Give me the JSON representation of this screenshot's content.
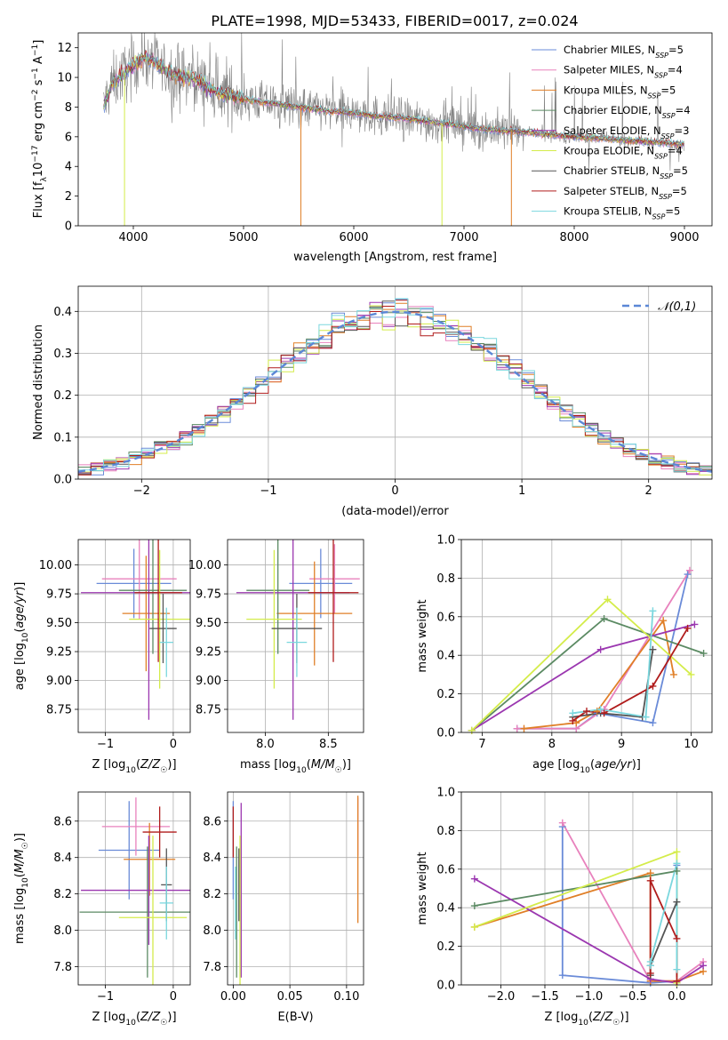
{
  "figure_title": "PLATE=1998, MJD=53433, FIBERID=0017, z=0.024",
  "colors": {
    "Chabrier MILES": "#6a8bd8",
    "Salpeter MILES": "#e882bd",
    "Kroupa MILES": "#e07f27",
    "Chabrier ELODIE": "#5b8a63",
    "Salpeter ELODIE": "#9b37b0",
    "Kroupa ELODIE": "#d4ec4a",
    "Chabrier STELIB": "#555555",
    "Salpeter STELIB": "#b01c1c",
    "Kroupa STELIB": "#7ad7de"
  },
  "chart_data": [
    {
      "id": "spectrum",
      "type": "line",
      "title": "PLATE=1998, MJD=53433, FIBERID=0017, z=0.024",
      "xlabel": "wavelength [Angstrom, rest frame]",
      "ylabel": "Flux [f_λ 10^-17 erg cm^-2 s^-1 A^-1]",
      "xlim": [
        3500,
        9250
      ],
      "ylim": [
        0,
        13
      ],
      "xticks": [
        4000,
        5000,
        6000,
        7000,
        8000,
        9000
      ],
      "yticks": [
        0,
        2,
        4,
        6,
        8,
        10,
        12
      ],
      "grid": false,
      "legend_position": "top-right",
      "data_color": "#808080",
      "model_continuum": {
        "x": [
          3720,
          3800,
          3900,
          4000,
          4100,
          4200,
          4300,
          4400,
          4500,
          4600,
          4700,
          4800,
          4900,
          5000,
          5200,
          5400,
          5600,
          5800,
          6000,
          6200,
          6400,
          6600,
          6800,
          7000,
          7200,
          7400,
          7600,
          7800,
          8000,
          8200,
          8400,
          8600,
          8800,
          9000
        ],
        "y": [
          7.8,
          9.5,
          10.2,
          10.8,
          11.4,
          11.0,
          10.4,
          10.1,
          10.0,
          9.8,
          9.2,
          8.9,
          8.8,
          8.5,
          8.3,
          8.1,
          7.9,
          7.7,
          7.6,
          7.4,
          7.3,
          7.1,
          6.9,
          6.7,
          6.5,
          6.4,
          6.3,
          6.1,
          6.0,
          5.9,
          5.8,
          5.7,
          5.6,
          5.5
        ]
      },
      "series": [
        {
          "name": "Chabrier MILES, N_SSP=5"
        },
        {
          "name": "Salpeter MILES, N_SSP=4"
        },
        {
          "name": "Kroupa MILES, N_SSP=5"
        },
        {
          "name": "Chabrier ELODIE, N_SSP=4"
        },
        {
          "name": "Salpeter ELODIE, N_SSP=3"
        },
        {
          "name": "Kroupa ELODIE, N_SSP=4"
        },
        {
          "name": "Chabrier STELIB, N_SSP=5"
        },
        {
          "name": "Salpeter STELIB, N_SSP=5"
        },
        {
          "name": "Kroupa STELIB, N_SSP=5"
        }
      ]
    },
    {
      "id": "residuals",
      "type": "line",
      "xlabel": "(data-model)/error",
      "ylabel": "Normed distribution",
      "xlim": [
        -2.5,
        2.5
      ],
      "ylim": [
        0,
        0.46
      ],
      "xticks": [
        -2,
        -1,
        0,
        1,
        2
      ],
      "yticks": [
        0.0,
        0.1,
        0.2,
        0.3,
        0.4
      ],
      "grid": true,
      "legend_position": "top-right",
      "legend": "𝒩(0,1)",
      "bin_width": 0.1
    },
    {
      "id": "age_vs_Z",
      "type": "scatter",
      "xlabel": "Z [log10(Z/Z☉)]",
      "ylabel": "age [log10(age/yr)]",
      "xlim": [
        -1.4,
        0.25
      ],
      "ylim": [
        8.55,
        10.22
      ],
      "xticks": [
        -1,
        0
      ],
      "yticks": [
        8.75,
        9.0,
        9.25,
        9.5,
        9.75,
        10.0
      ],
      "grid": true,
      "points": [
        {
          "s": "Chabrier MILES",
          "x": -0.58,
          "xerr": 0.55,
          "y": 9.84,
          "yerr": 0.3
        },
        {
          "s": "Salpeter MILES",
          "x": -0.5,
          "xerr": 0.55,
          "y": 9.88,
          "yerr": 0.35
        },
        {
          "s": "Kroupa MILES",
          "x": -0.4,
          "xerr": 0.35,
          "y": 9.58,
          "yerr": 0.5
        },
        {
          "s": "Chabrier ELODIE",
          "x": -0.3,
          "xerr": 0.5,
          "y": 9.78,
          "yerr": 0.55
        },
        {
          "s": "Salpeter ELODIE",
          "x": -0.36,
          "xerr": 1.0,
          "y": 9.76,
          "yerr": 1.1
        },
        {
          "s": "Kroupa ELODIE",
          "x": -0.2,
          "xerr": 0.45,
          "y": 9.53,
          "yerr": 0.6
        },
        {
          "s": "Chabrier STELIB",
          "x": -0.15,
          "xerr": 0.2,
          "y": 9.45,
          "yerr": 0.3
        },
        {
          "s": "Salpeter STELIB",
          "x": -0.22,
          "xerr": 0.35,
          "y": 9.76,
          "yerr": 0.6
        },
        {
          "s": "Kroupa STELIB",
          "x": -0.1,
          "xerr": 0.1,
          "y": 9.33,
          "yerr": 0.3
        }
      ]
    },
    {
      "id": "age_vs_mass",
      "type": "scatter",
      "xlabel": "mass [log10(M/M☉)]",
      "ylabel": "",
      "xlim": [
        7.7,
        8.78
      ],
      "ylim": [
        8.55,
        10.22
      ],
      "xticks": [
        8.0,
        8.5
      ],
      "yticks": [
        8.75,
        9.0,
        9.25,
        9.5,
        9.75,
        10.0
      ],
      "grid": true,
      "points": [
        {
          "s": "Chabrier MILES",
          "x": 8.44,
          "xerr": 0.25,
          "y": 9.84,
          "yerr": 0.3
        },
        {
          "s": "Salpeter MILES",
          "x": 8.55,
          "xerr": 0.2,
          "y": 9.88,
          "yerr": 0.3
        },
        {
          "s": "Kroupa MILES",
          "x": 8.39,
          "xerr": 0.3,
          "y": 9.58,
          "yerr": 0.45
        },
        {
          "s": "Chabrier ELODIE",
          "x": 8.1,
          "xerr": 0.25,
          "y": 9.78,
          "yerr": 0.55
        },
        {
          "s": "Salpeter ELODIE",
          "x": 8.22,
          "xerr": 0.45,
          "y": 9.76,
          "yerr": 1.1
        },
        {
          "s": "Kroupa ELODIE",
          "x": 8.07,
          "xerr": 0.22,
          "y": 9.53,
          "yerr": 0.6
        },
        {
          "s": "Chabrier STELIB",
          "x": 8.25,
          "xerr": 0.2,
          "y": 9.45,
          "yerr": 0.3
        },
        {
          "s": "Salpeter STELIB",
          "x": 8.54,
          "xerr": 0.2,
          "y": 9.76,
          "yerr": 0.6
        },
        {
          "s": "Kroupa STELIB",
          "x": 8.25,
          "xerr": 0.08,
          "y": 9.33,
          "yerr": 0.3
        }
      ]
    },
    {
      "id": "weight_vs_age",
      "type": "line",
      "xlabel": "age [log10(age/yr)]",
      "ylabel": "mass weight",
      "xlim": [
        6.7,
        10.3
      ],
      "ylim": [
        0,
        1.0
      ],
      "xticks": [
        7,
        8,
        9,
        10
      ],
      "yticks": [
        0.0,
        0.2,
        0.4,
        0.6,
        0.8,
        1.0
      ],
      "grid": true,
      "series": [
        {
          "s": "Chabrier MILES",
          "x": [
            7.5,
            8.35,
            8.65,
            9.45,
            9.95
          ],
          "y": [
            0.02,
            0.02,
            0.1,
            0.05,
            0.82
          ]
        },
        {
          "s": "Salpeter MILES",
          "x": [
            7.5,
            8.35,
            8.75,
            9.98
          ],
          "y": [
            0.02,
            0.02,
            0.12,
            0.84
          ]
        },
        {
          "s": "Kroupa MILES",
          "x": [
            7.6,
            8.35,
            8.65,
            9.6,
            9.75
          ],
          "y": [
            0.02,
            0.05,
            0.11,
            0.58,
            0.3
          ]
        },
        {
          "s": "Chabrier ELODIE",
          "x": [
            6.85,
            8.75,
            10.18
          ],
          "y": [
            0.01,
            0.59,
            0.41
          ]
        },
        {
          "s": "Salpeter ELODIE",
          "x": [
            6.85,
            8.7,
            10.05
          ],
          "y": [
            0.01,
            0.43,
            0.56
          ]
        },
        {
          "s": "Kroupa ELODIE",
          "x": [
            6.85,
            8.8,
            10.0
          ],
          "y": [
            0.01,
            0.69,
            0.3
          ]
        },
        {
          "s": "Chabrier STELIB",
          "x": [
            8.3,
            8.7,
            9.3,
            9.45
          ],
          "y": [
            0.08,
            0.1,
            0.08,
            0.43
          ]
        },
        {
          "s": "Salpeter STELIB",
          "x": [
            8.3,
            8.5,
            8.75,
            9.45,
            9.95
          ],
          "y": [
            0.06,
            0.11,
            0.1,
            0.24,
            0.54
          ]
        },
        {
          "s": "Kroupa STELIB",
          "x": [
            8.3,
            8.7,
            9.35,
            9.45
          ],
          "y": [
            0.1,
            0.12,
            0.08,
            0.63
          ]
        }
      ]
    },
    {
      "id": "mass_vs_Z",
      "type": "scatter",
      "xlabel": "Z [log10(Z/Z☉)]",
      "ylabel": "mass [log10(M/M☉)]",
      "xlim": [
        -1.4,
        0.25
      ],
      "ylim": [
        7.7,
        8.76
      ],
      "xticks": [
        -1,
        0
      ],
      "yticks": [
        7.8,
        8.0,
        8.2,
        8.4,
        8.6
      ],
      "grid": true,
      "points": [
        {
          "s": "Chabrier MILES",
          "x": -0.65,
          "xerr": 0.45,
          "y": 8.44,
          "yerr": 0.27
        },
        {
          "s": "Salpeter MILES",
          "x": -0.55,
          "xerr": 0.5,
          "y": 8.57,
          "yerr": 0.16
        },
        {
          "s": "Kroupa MILES",
          "x": -0.35,
          "xerr": 0.38,
          "y": 8.39,
          "yerr": 0.2
        },
        {
          "s": "Chabrier ELODIE",
          "x": -0.38,
          "xerr": 1.0,
          "y": 8.1,
          "yerr": 0.36
        },
        {
          "s": "Salpeter ELODIE",
          "x": -0.36,
          "xerr": 1.0,
          "y": 8.22,
          "yerr": 0.3
        },
        {
          "s": "Kroupa ELODIE",
          "x": -0.3,
          "xerr": 0.5,
          "y": 8.07,
          "yerr": 0.45
        },
        {
          "s": "Chabrier STELIB",
          "x": -0.1,
          "xerr": 0.08,
          "y": 8.25,
          "yerr": 0.2
        },
        {
          "s": "Salpeter STELIB",
          "x": -0.2,
          "xerr": 0.25,
          "y": 8.54,
          "yerr": 0.14
        },
        {
          "s": "Kroupa STELIB",
          "x": -0.1,
          "xerr": 0.1,
          "y": 8.15,
          "yerr": 0.2
        }
      ]
    },
    {
      "id": "mass_vs_ebv",
      "type": "scatter",
      "xlabel": "E(B-V)",
      "ylabel": "",
      "xlim": [
        -0.005,
        0.115
      ],
      "ylim": [
        7.7,
        8.76
      ],
      "xticks": [
        0.0,
        0.05,
        0.1
      ],
      "yticks": [
        7.8,
        8.0,
        8.2,
        8.4,
        8.6
      ],
      "grid": true,
      "points": [
        {
          "s": "Chabrier MILES",
          "x": 0.0,
          "y": 8.44,
          "yerr": 0.27
        },
        {
          "s": "Salpeter MILES",
          "x": 0.11,
          "y": 8.57,
          "yerr": 0.16
        },
        {
          "s": "Kroupa MILES",
          "x": 0.11,
          "y": 8.39,
          "yerr": 0.35
        },
        {
          "s": "Chabrier ELODIE",
          "x": 0.003,
          "y": 8.1,
          "yerr": 0.36
        },
        {
          "s": "Salpeter ELODIE",
          "x": 0.007,
          "y": 8.22,
          "yerr": 0.48
        },
        {
          "s": "Kroupa ELODIE",
          "x": 0.006,
          "y": 8.07,
          "yerr": 0.45
        },
        {
          "s": "Chabrier STELIB",
          "x": 0.005,
          "y": 8.25,
          "yerr": 0.2
        },
        {
          "s": "Salpeter STELIB",
          "x": 0.0,
          "y": 8.54,
          "yerr": 0.14
        },
        {
          "s": "Kroupa STELIB",
          "x": 0.002,
          "y": 8.15,
          "yerr": 0.2
        }
      ]
    },
    {
      "id": "weight_vs_Z",
      "type": "line",
      "xlabel": "Z [log10(Z/Z☉)]",
      "ylabel": "mass weight",
      "xlim": [
        -2.45,
        0.4
      ],
      "ylim": [
        0,
        1.0
      ],
      "xticks": [
        -2.0,
        -1.5,
        -1.0,
        -0.5,
        0.0
      ],
      "yticks": [
        0.0,
        0.2,
        0.4,
        0.6,
        0.8,
        1.0
      ],
      "grid": true,
      "series": [
        {
          "s": "Chabrier MILES",
          "x": [
            -1.3,
            -1.3,
            -0.3,
            0.0,
            0.0
          ],
          "y": [
            0.82,
            0.05,
            0.01,
            0.02,
            0.62
          ]
        },
        {
          "s": "Salpeter MILES",
          "x": [
            -1.3,
            -0.3,
            0.0,
            0.3
          ],
          "y": [
            0.84,
            0.02,
            0.02,
            0.12
          ]
        },
        {
          "s": "Kroupa MILES",
          "x": [
            -2.3,
            -0.3,
            -0.3,
            0.0,
            0.3
          ],
          "y": [
            0.3,
            0.58,
            0.02,
            0.02,
            0.07
          ]
        },
        {
          "s": "Chabrier ELODIE",
          "x": [
            -2.3,
            0.0,
            0.0
          ],
          "y": [
            0.41,
            0.59,
            0.01
          ]
        },
        {
          "s": "Salpeter ELODIE",
          "x": [
            -2.3,
            -0.3,
            0.0,
            0.3
          ],
          "y": [
            0.55,
            0.03,
            0.01,
            0.1
          ]
        },
        {
          "s": "Kroupa ELODIE",
          "x": [
            -2.3,
            0.0,
            0.0
          ],
          "y": [
            0.3,
            0.69,
            0.01
          ]
        },
        {
          "s": "Chabrier STELIB",
          "x": [
            -0.3,
            -0.3,
            0.0
          ],
          "y": [
            0.05,
            0.1,
            0.43
          ]
        },
        {
          "s": "Salpeter STELIB",
          "x": [
            -0.3,
            -0.3,
            0.0,
            0.0
          ],
          "y": [
            0.06,
            0.54,
            0.24,
            0.02
          ]
        },
        {
          "s": "Kroupa STELIB",
          "x": [
            -0.3,
            -0.3,
            0.0,
            0.0
          ],
          "y": [
            0.1,
            0.12,
            0.63,
            0.08
          ]
        }
      ]
    }
  ]
}
